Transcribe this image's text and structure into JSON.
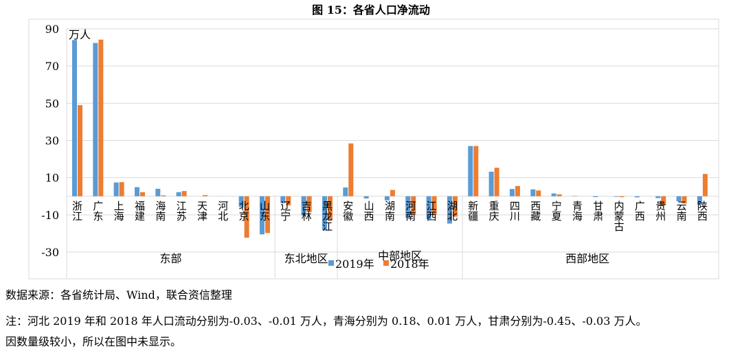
{
  "chart_data": {
    "type": "bar",
    "title": "图 15：各省人口净流动",
    "unit_label": "万人",
    "ylim": [
      -30,
      90
    ],
    "yticks": [
      90,
      70,
      50,
      30,
      10,
      -10,
      -30
    ],
    "grid": true,
    "legend_position": "bottom",
    "categories": [
      "浙江",
      "广东",
      "上海",
      "福建",
      "海南",
      "江苏",
      "天津",
      "河北",
      "北京",
      "山东",
      "辽宁",
      "吉林",
      "黑龙江",
      "安徽",
      "山西",
      "湖南",
      "河南",
      "江西",
      "湖北",
      "新疆",
      "重庆",
      "四川",
      "西藏",
      "宁夏",
      "青海",
      "甘肃",
      "内蒙古",
      "广西",
      "贵州",
      "云南",
      "陕西"
    ],
    "groups": [
      {
        "name": "东部",
        "count": 10
      },
      {
        "name": "东北地区",
        "count": 3
      },
      {
        "name": "中部地区",
        "count": 6
      },
      {
        "name": "西部地区",
        "count": 12
      }
    ],
    "series": [
      {
        "name": "2019年",
        "color": "#5B9BD5",
        "values": [
          84,
          82.4,
          7.4,
          4.9,
          4,
          2.2,
          0,
          -0.03,
          -5.8,
          -20.5,
          -3.7,
          -10.4,
          -18.4,
          4.7,
          -1.2,
          -2.2,
          -11.6,
          -12.3,
          -14.7,
          27,
          13.2,
          3.9,
          3.7,
          1.5,
          0.18,
          -0.45,
          -0.3,
          -0.6,
          -1,
          -2.7,
          -4.5
        ]
      },
      {
        "name": "2018年",
        "color": "#ED7D31",
        "values": [
          49,
          84.2,
          7.6,
          2.2,
          0.5,
          2.8,
          0.6,
          -0.01,
          -22.3,
          -19.8,
          -4.9,
          -8.6,
          -12.9,
          28.4,
          0,
          3.4,
          -10,
          -10,
          -11,
          27,
          15.3,
          5.5,
          3.1,
          1,
          0.01,
          -0.03,
          -0.5,
          0,
          -4.9,
          -3.9,
          12
        ]
      }
    ]
  },
  "notes": {
    "source": "数据来源：各省统计局、Wind，联合资信整理",
    "note1": "注：河北 2019 年和 2018 年人口流动分别为-0.03、-0.01 万人，青海分别为 0.18、0.01 万人，甘肃分别为-0.45、-0.03 万人。",
    "note2": "因数量级较小，所以在图中未显示。"
  }
}
